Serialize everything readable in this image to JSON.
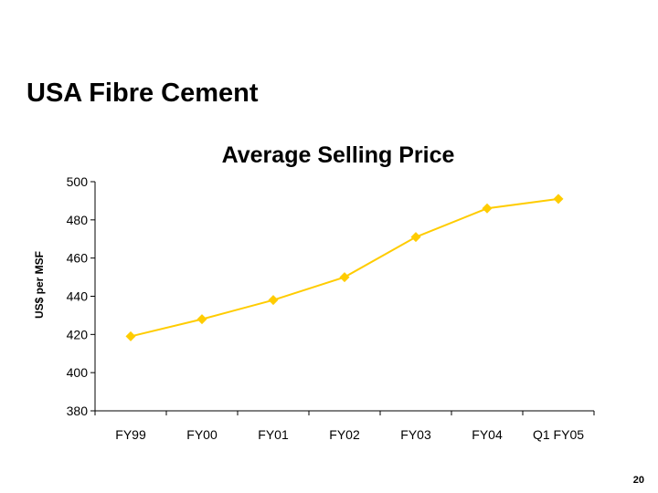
{
  "slide": {
    "title": "USA Fibre Cement",
    "page_number": "20"
  },
  "chart_data": {
    "type": "line",
    "title": "Average Selling Price",
    "xlabel": "",
    "ylabel": "US$ per MSF",
    "categories": [
      "FY99",
      "FY00",
      "FY01",
      "FY02",
      "FY03",
      "FY04",
      "Q1 FY05"
    ],
    "series": [
      {
        "values": [
          419,
          428,
          438,
          450,
          471,
          486,
          491
        ],
        "color": "#FFCC00"
      }
    ],
    "ylim": [
      380,
      500
    ],
    "yticks": [
      380,
      400,
      420,
      440,
      460,
      480,
      500
    ],
    "grid": false,
    "legend": "none"
  }
}
